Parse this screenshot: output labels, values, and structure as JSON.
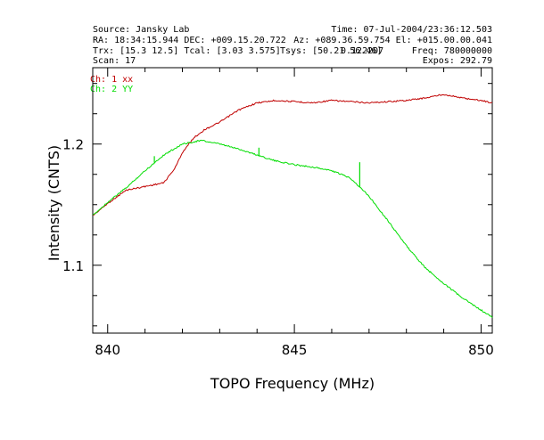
{
  "header": {
    "row1_left": "Source: Jansky Lab",
    "row1_right": "Time: 07-Jul-2004/23:36:12.503",
    "row2_left": "RA: 18:34:15.944  DEC: +009.15.20.722",
    "row2_right": "Az: +089.36.59.754  El: +015.00.00.041",
    "row3_left": "Trx: [15.3 12.5]   Tcal: [3.03 3.575]",
    "row3_mid": "Tsys: [50.21 56.46]",
    "row3_right": "Freq: 780000000",
    "row3_overlap": "0.122207",
    "row4_left": "Scan: 17",
    "row4_right": "Expos: 292.79"
  },
  "chart_data": {
    "type": "line",
    "title": "",
    "xlabel": "TOPO Frequency (MHz)",
    "ylabel": "Intensity (CNTS)",
    "xlim": [
      839.6,
      850.3
    ],
    "ylim": [
      1.044,
      1.263
    ],
    "x_ticks": [
      "840",
      "845",
      "850"
    ],
    "y_ticks": [
      "1.1",
      "1.2"
    ],
    "legend": [
      "Ch: 1 xx",
      "Ch: 2 YY"
    ],
    "legend_position": "top-left",
    "series": [
      {
        "name": "Ch: 1 xx",
        "color": "#c00000",
        "x": [
          839.6,
          840.0,
          840.5,
          841.0,
          841.5,
          841.8,
          842.0,
          842.3,
          842.6,
          843.0,
          843.5,
          844.0,
          844.5,
          845.0,
          845.5,
          846.0,
          846.5,
          847.0,
          847.5,
          848.0,
          848.5,
          849.0,
          849.5,
          850.0,
          850.3
        ],
        "values": [
          1.141,
          1.151,
          1.162,
          1.165,
          1.168,
          1.18,
          1.193,
          1.205,
          1.212,
          1.218,
          1.228,
          1.234,
          1.236,
          1.235,
          1.234,
          1.236,
          1.235,
          1.234,
          1.235,
          1.236,
          1.238,
          1.241,
          1.238,
          1.236,
          1.234
        ]
      },
      {
        "name": "Ch: 2 YY",
        "color": "#00dd00",
        "x": [
          839.6,
          840.0,
          840.5,
          841.0,
          841.5,
          842.0,
          842.5,
          843.0,
          843.5,
          844.0,
          844.5,
          845.0,
          845.5,
          846.0,
          846.5,
          847.0,
          847.5,
          848.0,
          848.5,
          849.0,
          849.5,
          850.0,
          850.3
        ],
        "values": [
          1.141,
          1.152,
          1.164,
          1.178,
          1.191,
          1.2,
          1.203,
          1.2,
          1.196,
          1.191,
          1.186,
          1.183,
          1.181,
          1.178,
          1.172,
          1.157,
          1.137,
          1.116,
          1.098,
          1.085,
          1.073,
          1.063,
          1.057
        ]
      }
    ],
    "spikes": [
      {
        "series": "Ch: 2 YY",
        "x": 841.25,
        "value": 1.19
      },
      {
        "series": "Ch: 2 YY",
        "x": 844.05,
        "value": 1.197
      },
      {
        "series": "Ch: 2 YY",
        "x": 846.75,
        "value": 1.185
      }
    ]
  }
}
